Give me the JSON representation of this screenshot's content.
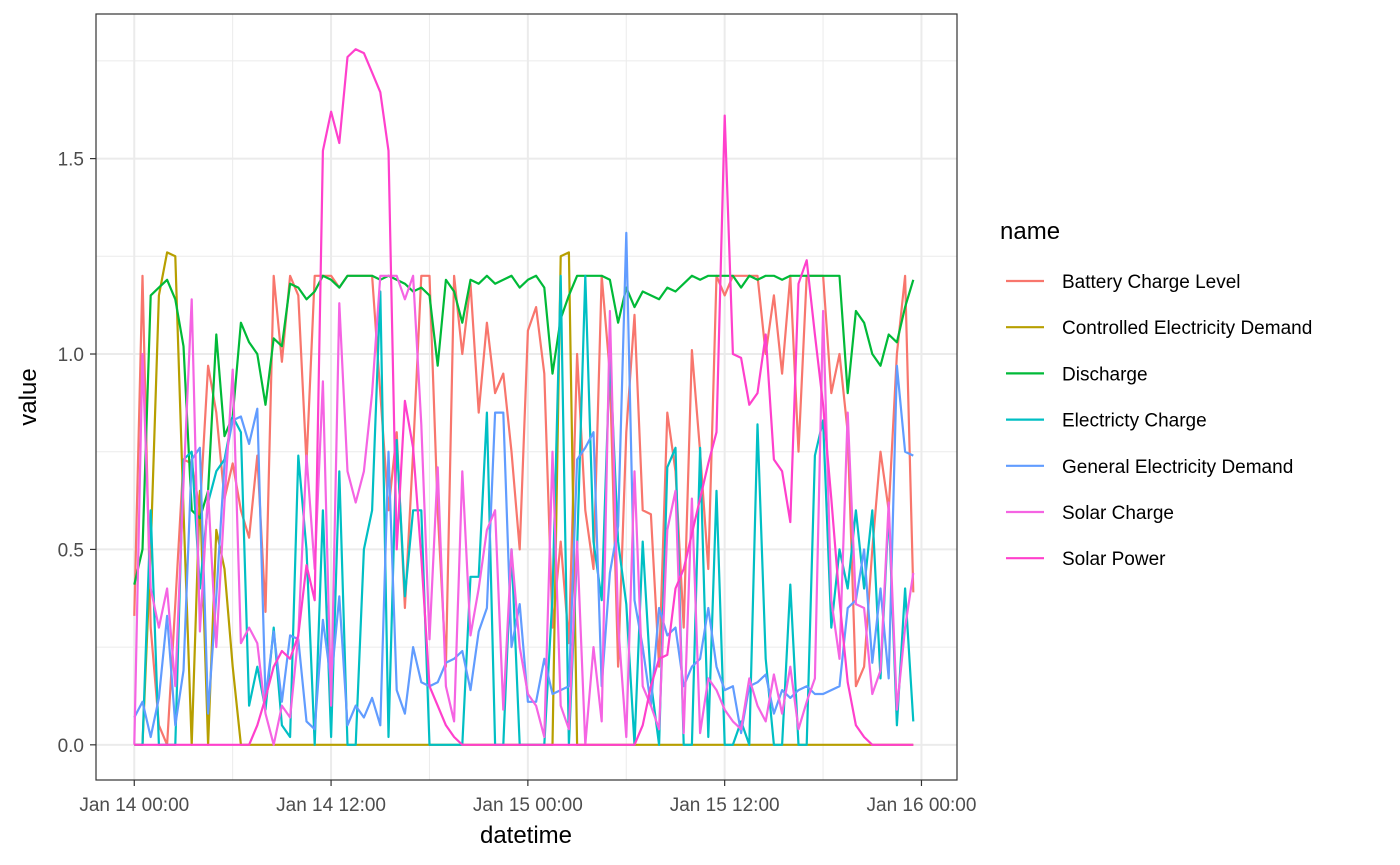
{
  "chart_data": {
    "type": "line",
    "xlabel": "datetime",
    "ylabel": "value",
    "x_tick_labels": [
      "Jan 14 00:00",
      "Jan 14 12:00",
      "Jan 15 00:00",
      "Jan 15 12:00",
      "Jan 16 00:00"
    ],
    "y_tick_labels": [
      "0.0",
      "0.5",
      "1.0",
      "1.5"
    ],
    "y_ticks": [
      0,
      0.5,
      1.0,
      1.5
    ],
    "xlim": [
      "2024-01-13T21:40",
      "2024-01-16T02:10"
    ],
    "ylim": [
      -0.09,
      1.87
    ],
    "grid": true,
    "legend": {
      "title": "name",
      "placement": "right"
    },
    "x": [
      "2024-01-14T00:00",
      "2024-01-14T00:30",
      "2024-01-14T01:00",
      "2024-01-14T01:30",
      "2024-01-14T02:00",
      "2024-01-14T02:30",
      "2024-01-14T03:00",
      "2024-01-14T03:30",
      "2024-01-14T04:00",
      "2024-01-14T04:30",
      "2024-01-14T05:00",
      "2024-01-14T05:30",
      "2024-01-14T06:00",
      "2024-01-14T06:30",
      "2024-01-14T07:00",
      "2024-01-14T07:30",
      "2024-01-14T08:00",
      "2024-01-14T08:30",
      "2024-01-14T09:00",
      "2024-01-14T09:30",
      "2024-01-14T10:00",
      "2024-01-14T10:30",
      "2024-01-14T11:00",
      "2024-01-14T11:30",
      "2024-01-14T12:00",
      "2024-01-14T12:30",
      "2024-01-14T13:00",
      "2024-01-14T13:30",
      "2024-01-14T14:00",
      "2024-01-14T14:30",
      "2024-01-14T15:00",
      "2024-01-14T15:30",
      "2024-01-14T16:00",
      "2024-01-14T16:30",
      "2024-01-14T17:00",
      "2024-01-14T17:30",
      "2024-01-14T18:00",
      "2024-01-14T18:30",
      "2024-01-14T19:00",
      "2024-01-14T19:30",
      "2024-01-14T20:00",
      "2024-01-14T20:30",
      "2024-01-14T21:00",
      "2024-01-14T21:30",
      "2024-01-14T22:00",
      "2024-01-14T22:30",
      "2024-01-14T23:00",
      "2024-01-14T23:30",
      "2024-01-15T00:00",
      "2024-01-15T00:30",
      "2024-01-15T01:00",
      "2024-01-15T01:30",
      "2024-01-15T02:00",
      "2024-01-15T02:30",
      "2024-01-15T03:00",
      "2024-01-15T03:30",
      "2024-01-15T04:00",
      "2024-01-15T04:30",
      "2024-01-15T05:00",
      "2024-01-15T05:30",
      "2024-01-15T06:00",
      "2024-01-15T06:30",
      "2024-01-15T07:00",
      "2024-01-15T07:30",
      "2024-01-15T08:00",
      "2024-01-15T08:30",
      "2024-01-15T09:00",
      "2024-01-15T09:30",
      "2024-01-15T10:00",
      "2024-01-15T10:30",
      "2024-01-15T11:00",
      "2024-01-15T11:30",
      "2024-01-15T12:00",
      "2024-01-15T12:30",
      "2024-01-15T13:00",
      "2024-01-15T13:30",
      "2024-01-15T14:00",
      "2024-01-15T14:30",
      "2024-01-15T15:00",
      "2024-01-15T15:30",
      "2024-01-15T16:00",
      "2024-01-15T16:30",
      "2024-01-15T17:00",
      "2024-01-15T17:30",
      "2024-01-15T18:00",
      "2024-01-15T18:30",
      "2024-01-15T19:00",
      "2024-01-15T19:30",
      "2024-01-15T20:00",
      "2024-01-15T20:30",
      "2024-01-15T21:00",
      "2024-01-15T21:30",
      "2024-01-15T22:00",
      "2024-01-15T22:30",
      "2024-01-15T23:00",
      "2024-01-15T23:30"
    ],
    "series": [
      {
        "name": "Battery Charge Level",
        "color": "#F8766D",
        "values": [
          0.33,
          1.2,
          0.3,
          0.05,
          0.0,
          0.36,
          0.73,
          0.72,
          0.6,
          0.97,
          0.85,
          0.63,
          0.72,
          0.6,
          0.53,
          0.74,
          0.34,
          1.2,
          0.98,
          1.2,
          1.15,
          0.72,
          1.2,
          1.2,
          1.2,
          1.17,
          1.2,
          1.2,
          1.2,
          1.2,
          0.9,
          0.6,
          0.8,
          0.35,
          0.75,
          1.2,
          1.2,
          0.6,
          0.2,
          1.2,
          1.0,
          1.18,
          0.85,
          1.08,
          0.9,
          0.95,
          0.75,
          0.5,
          1.06,
          1.12,
          0.95,
          0.3,
          0.52,
          0.26,
          1.0,
          0.6,
          0.45,
          1.2,
          0.95,
          0.2,
          0.8,
          1.1,
          0.6,
          0.59,
          0.2,
          0.85,
          0.7,
          0.3,
          1.01,
          0.75,
          0.45,
          1.2,
          1.15,
          1.2,
          1.2,
          1.2,
          1.2,
          1.0,
          1.15,
          0.95,
          1.2,
          0.75,
          1.2,
          1.2,
          1.2,
          0.9,
          1.0,
          0.8,
          0.15,
          0.2,
          0.5,
          0.75,
          0.6,
          1.0,
          1.2,
          0.39
        ]
      },
      {
        "name": "Controlled Electricity Demand",
        "color": "#B79F00",
        "values": [
          0.0,
          0.0,
          0.5,
          1.15,
          1.26,
          1.25,
          0.6,
          0.0,
          0.65,
          0.0,
          0.55,
          0.45,
          0.2,
          0.0,
          0.0,
          0.0,
          0.0,
          0.0,
          0.0,
          0.0,
          0.0,
          0.0,
          0.0,
          0.0,
          0.0,
          0.0,
          0.0,
          0.0,
          0.0,
          0.0,
          0.0,
          0.0,
          0.0,
          0.0,
          0.0,
          0.0,
          0.0,
          0.0,
          0.0,
          0.0,
          0.0,
          0.0,
          0.0,
          0.0,
          0.0,
          0.0,
          0.0,
          0.0,
          0.0,
          0.0,
          0.0,
          0.0,
          1.25,
          1.26,
          0.0,
          0.0,
          0.0,
          0.0,
          0.0,
          0.0,
          0.0,
          0.0,
          0.0,
          0.0,
          0.0,
          0.0,
          0.0,
          0.0,
          0.0,
          0.0,
          0.0,
          0.0,
          0.0,
          0.0,
          0.0,
          0.0,
          0.0,
          0.0,
          0.0,
          0.0,
          0.0,
          0.0,
          0.0,
          0.0,
          0.0,
          0.0,
          0.0,
          0.0,
          0.0,
          0.0,
          0.0,
          0.0,
          0.0,
          0.0,
          0.0,
          0.0
        ]
      },
      {
        "name": "Discharge",
        "color": "#00BA38",
        "values": [
          0.41,
          0.5,
          1.15,
          1.17,
          1.19,
          1.14,
          1.02,
          0.6,
          0.58,
          0.65,
          1.05,
          0.79,
          0.84,
          1.08,
          1.03,
          1.0,
          0.87,
          1.04,
          1.02,
          1.18,
          1.17,
          1.14,
          1.16,
          1.2,
          1.19,
          1.17,
          1.2,
          1.2,
          1.2,
          1.2,
          1.19,
          1.2,
          1.19,
          1.18,
          1.16,
          1.17,
          1.15,
          0.97,
          1.19,
          1.16,
          1.08,
          1.19,
          1.18,
          1.2,
          1.18,
          1.19,
          1.2,
          1.17,
          1.19,
          1.2,
          1.17,
          0.95,
          1.09,
          1.15,
          1.2,
          1.2,
          1.2,
          1.2,
          1.19,
          1.08,
          1.17,
          1.12,
          1.16,
          1.15,
          1.14,
          1.17,
          1.16,
          1.18,
          1.2,
          1.19,
          1.2,
          1.2,
          1.2,
          1.2,
          1.17,
          1.2,
          1.19,
          1.2,
          1.2,
          1.19,
          1.2,
          1.2,
          1.2,
          1.2,
          1.2,
          1.2,
          1.2,
          0.9,
          1.11,
          1.08,
          1.0,
          0.97,
          1.05,
          1.03,
          1.12,
          1.19
        ]
      },
      {
        "name": "Electricty Charge",
        "color": "#00BFC4",
        "values": [
          0.0,
          0.0,
          0.6,
          0.0,
          0.0,
          0.0,
          0.73,
          0.75,
          0.4,
          0.62,
          0.7,
          0.73,
          0.84,
          0.8,
          0.1,
          0.2,
          0.09,
          0.3,
          0.05,
          0.02,
          0.74,
          0.5,
          0.0,
          0.6,
          0.02,
          0.7,
          0.0,
          0.0,
          0.5,
          0.6,
          1.16,
          0.02,
          0.78,
          0.38,
          0.6,
          0.6,
          0.0,
          0.0,
          0.0,
          0.0,
          0.0,
          0.43,
          0.43,
          0.85,
          0.0,
          0.0,
          0.5,
          0.0,
          0.0,
          0.0,
          0.0,
          0.38,
          1.2,
          0.0,
          0.5,
          1.2,
          0.52,
          0.37,
          1.0,
          0.52,
          0.36,
          0.0,
          0.52,
          0.16,
          0.0,
          0.71,
          0.76,
          0.0,
          0.0,
          0.76,
          0.02,
          0.65,
          0.0,
          0.0,
          0.06,
          0.0,
          0.82,
          0.22,
          0.0,
          0.0,
          0.41,
          0.0,
          0.0,
          0.74,
          0.83,
          0.3,
          0.5,
          0.4,
          0.6,
          0.4,
          0.6,
          0.17,
          0.6,
          0.05,
          0.4,
          0.06
        ]
      },
      {
        "name": "General Electricity Demand",
        "color": "#619CFF",
        "values": [
          0.07,
          0.11,
          0.02,
          0.12,
          0.33,
          0.05,
          0.19,
          0.73,
          0.76,
          0.08,
          0.38,
          0.72,
          0.83,
          0.84,
          0.77,
          0.86,
          0.12,
          0.29,
          0.11,
          0.28,
          0.27,
          0.06,
          0.04,
          0.32,
          0.16,
          0.38,
          0.05,
          0.1,
          0.07,
          0.12,
          0.05,
          0.75,
          0.14,
          0.08,
          0.25,
          0.16,
          0.15,
          0.16,
          0.21,
          0.22,
          0.24,
          0.14,
          0.29,
          0.35,
          0.85,
          0.85,
          0.25,
          0.36,
          0.11,
          0.11,
          0.22,
          0.13,
          0.14,
          0.15,
          0.73,
          0.76,
          0.8,
          0.15,
          0.44,
          0.56,
          1.31,
          0.37,
          0.25,
          0.1,
          0.35,
          0.28,
          0.3,
          0.15,
          0.2,
          0.22,
          0.35,
          0.2,
          0.14,
          0.15,
          0.03,
          0.15,
          0.16,
          0.18,
          0.08,
          0.14,
          0.12,
          0.14,
          0.15,
          0.13,
          0.13,
          0.14,
          0.15,
          0.35,
          0.37,
          0.5,
          0.21,
          0.4,
          0.17,
          0.97,
          0.75,
          0.74
        ]
      },
      {
        "name": "Solar Charge",
        "color": "#F564E3",
        "values": [
          0.0,
          1.0,
          0.4,
          0.3,
          0.4,
          0.15,
          0.67,
          1.14,
          0.29,
          0.65,
          0.25,
          0.62,
          0.96,
          0.26,
          0.3,
          0.26,
          0.08,
          0.0,
          0.1,
          0.07,
          0.28,
          0.74,
          0.45,
          0.93,
          0.1,
          1.13,
          0.7,
          0.62,
          0.7,
          0.9,
          1.2,
          1.2,
          1.2,
          1.14,
          1.2,
          0.82,
          0.27,
          0.71,
          0.15,
          0.06,
          0.7,
          0.28,
          0.4,
          0.55,
          0.6,
          0.09,
          0.5,
          0.25,
          0.13,
          0.1,
          0.02,
          0.75,
          0.1,
          0.04,
          0.52,
          0.0,
          0.25,
          0.06,
          1.11,
          0.31,
          0.02,
          0.7,
          0.15,
          0.1,
          0.04,
          0.55,
          0.65,
          0.03,
          0.63,
          0.03,
          0.17,
          0.14,
          0.09,
          0.06,
          0.04,
          0.17,
          0.1,
          0.06,
          0.18,
          0.08,
          0.2,
          0.04,
          0.11,
          0.17,
          1.11,
          0.37,
          0.22,
          0.85,
          0.36,
          0.35,
          0.13,
          0.19,
          0.62,
          0.09,
          0.3,
          0.44
        ]
      },
      {
        "name": "Solar Power",
        "color": "#FF40CC",
        "values": [
          0.0,
          0.0,
          0.0,
          0.0,
          0.0,
          0.0,
          0.0,
          0.0,
          0.0,
          0.0,
          0.0,
          0.0,
          0.0,
          0.0,
          0.0,
          0.05,
          0.12,
          0.2,
          0.24,
          0.22,
          0.28,
          0.46,
          0.37,
          1.52,
          1.62,
          1.54,
          1.76,
          1.78,
          1.77,
          1.72,
          1.67,
          1.52,
          0.5,
          0.88,
          0.76,
          0.48,
          0.15,
          0.1,
          0.05,
          0.02,
          0.0,
          0.0,
          0.0,
          0.0,
          0.0,
          0.0,
          0.0,
          0.0,
          0.0,
          0.0,
          0.0,
          0.0,
          0.0,
          0.0,
          0.0,
          0.0,
          0.0,
          0.0,
          0.0,
          0.0,
          0.0,
          0.0,
          0.05,
          0.15,
          0.22,
          0.23,
          0.4,
          0.45,
          0.54,
          0.63,
          0.72,
          0.8,
          1.61,
          1.0,
          0.99,
          0.87,
          0.9,
          1.05,
          0.73,
          0.7,
          0.57,
          1.18,
          1.24,
          1.05,
          0.87,
          0.63,
          0.37,
          0.16,
          0.05,
          0.02,
          0.0,
          0.0,
          0.0,
          0.0,
          0.0,
          0.0
        ]
      }
    ]
  }
}
